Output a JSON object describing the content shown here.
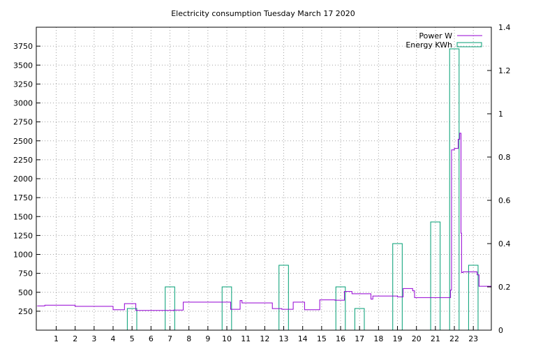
{
  "chart_data": {
    "type": "line",
    "title": "Electricity consumption Tuesday March 17 2020",
    "xlabel": "",
    "ylabel": "",
    "y2label": "",
    "xlim": [
      -0.05,
      23.95
    ],
    "ylim": [
      0,
      4000
    ],
    "y2lim": [
      0,
      1.4
    ],
    "x_ticks": [
      1,
      2,
      3,
      4,
      5,
      6,
      7,
      8,
      9,
      10,
      11,
      12,
      13,
      14,
      15,
      16,
      17,
      18,
      19,
      20,
      21,
      22,
      23
    ],
    "y_ticks": [
      250,
      500,
      750,
      1000,
      1250,
      1500,
      1750,
      2000,
      2250,
      2500,
      2750,
      3000,
      3250,
      3500,
      3750
    ],
    "y2_ticks": [
      "0",
      "0.2",
      "0.4",
      "0.6",
      "0.8",
      "1",
      "1.2",
      "1.4"
    ],
    "grid": true,
    "legend": "top-right",
    "colors": {
      "power": "#9400d3",
      "energy": "#009e73"
    },
    "series": [
      {
        "name": "Power W",
        "style": "step-line",
        "axis": "left",
        "x": [
          0,
          0.4,
          2,
          4,
          4.6,
          5.2,
          7.2,
          7.7,
          10.2,
          10.7,
          10.8,
          12.4,
          12.9,
          13.5,
          14.1,
          14.9,
          15.7,
          16.2,
          16.6,
          17.6,
          17.7,
          18.2,
          19,
          19.3,
          19.8,
          19.9,
          20.4,
          21,
          21.2,
          21.8,
          21.85,
          22.0,
          22.2,
          22.28,
          22.35,
          22.38,
          22.45,
          23.2,
          23.3,
          23.95
        ],
        "y": [
          320,
          330,
          315,
          270,
          350,
          260,
          265,
          370,
          275,
          390,
          360,
          285,
          275,
          370,
          270,
          400,
          395,
          510,
          480,
          410,
          450,
          450,
          440,
          550,
          520,
          430,
          430,
          430,
          430,
          530,
          2380,
          2400,
          2520,
          2600,
          1280,
          760,
          770,
          730,
          580,
          575
        ]
      },
      {
        "name": "Energy KWh",
        "style": "bars",
        "axis": "right",
        "x": [
          4.75,
          6.75,
          9.75,
          12.75,
          15.75,
          16.75,
          18.75,
          20.75,
          21.75,
          22.75
        ],
        "width": 0.5,
        "values": [
          0.1,
          0.2,
          0.2,
          0.3,
          0.2,
          0.1,
          0.4,
          0.5,
          1.3,
          0.3
        ]
      }
    ]
  }
}
